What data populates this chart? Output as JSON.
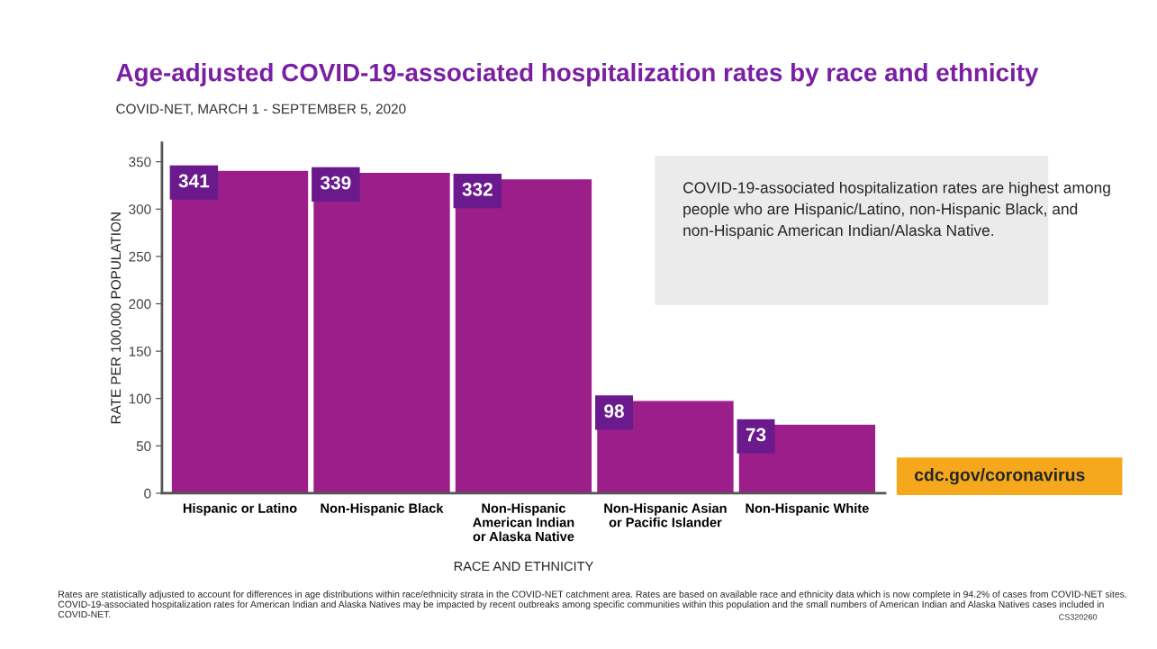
{
  "chart_data": {
    "type": "bar",
    "title": "Age-adjusted COVID-19-associated hospitalization rates by race and ethnicity",
    "subtitle": "COVID-NET, MARCH 1 - SEPTEMBER 5, 2020",
    "xlabel": "RACE AND ETHNICITY",
    "ylabel": "RATE PER 100,000 POPULATION",
    "categories": [
      "Hispanic or Latino",
      "Non-Hispanic Black",
      "Non-Hispanic\nAmerican Indian\nor Alaska Native",
      "Non-Hispanic Asian\nor Pacific Islander",
      "Non-Hispanic White"
    ],
    "values": [
      341,
      339,
      332,
      98,
      73
    ],
    "color": "#9b1e8a",
    "data_labels": true,
    "ylim": [
      0,
      370
    ],
    "yticks": [
      0,
      50,
      100,
      150,
      200,
      250,
      300,
      350
    ],
    "grid": false,
    "annotations": [
      "COVID-19-associated hospitalization rates are highest among people who are Hispanic/Latino, non-Hispanic Black, and non-Hispanic American Indian/Alaska Native.",
      "cdc.gov/coronavirus",
      "Rates are statistically adjusted to account for differences in age distributions within race/ethnicity strata in the COVID-NET catchment area. Rates are based on available race and ethnicity data which is now complete in 94.2% of cases from COVID-NET sites. COVID-19-associated hospitalization rates for American Indian and Alaska Natives may be impacted by recent outbreaks among specific communities within this population and the small numbers of American Indian and Alaska Natives cases included in COVID-NET.",
      "CS320260"
    ]
  }
}
